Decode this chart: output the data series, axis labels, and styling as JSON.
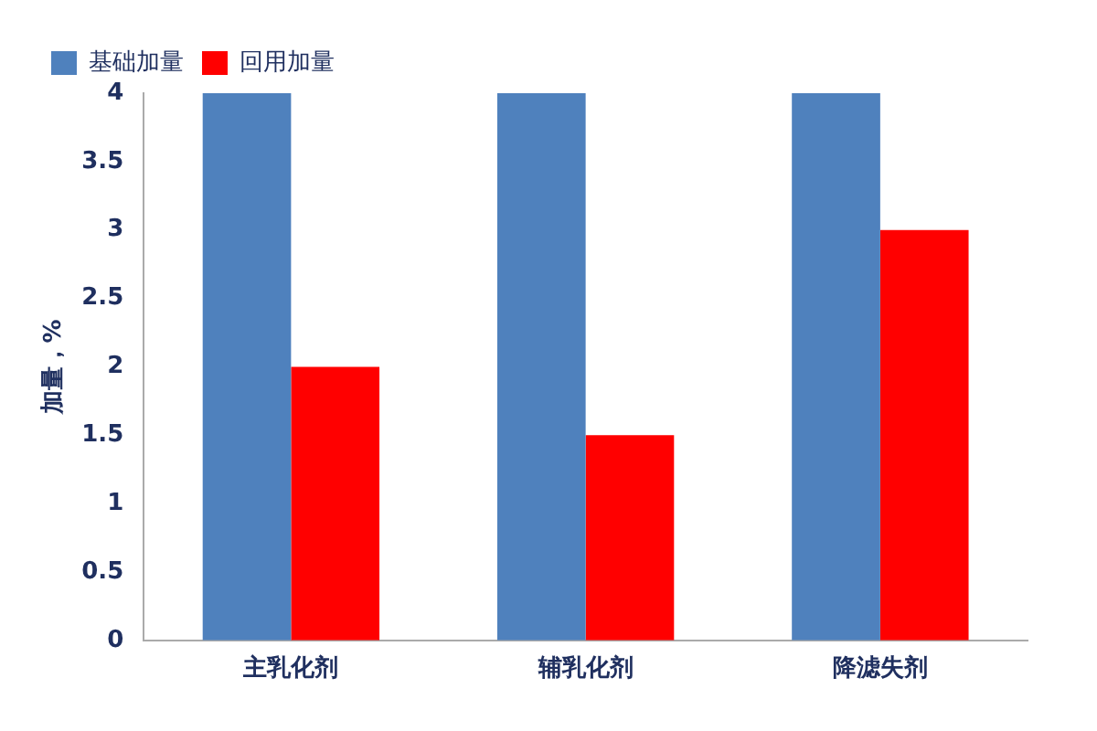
{
  "chart_data": {
    "type": "bar",
    "ylabel": "加量，%",
    "categories": [
      "主乳化剂",
      "辅乳化剂",
      "降滤失剂"
    ],
    "series": [
      {
        "name": "基础加量",
        "color": "#4f81bd",
        "values": [
          4,
          4,
          4
        ]
      },
      {
        "name": "回用加量",
        "color": "#ff0000",
        "values": [
          2,
          1.5,
          3
        ]
      }
    ],
    "ylim": [
      0,
      4
    ],
    "yticks": [
      0,
      0.5,
      1,
      1.5,
      2,
      2.5,
      3,
      3.5,
      4
    ],
    "grid": false,
    "legend": "top left"
  }
}
